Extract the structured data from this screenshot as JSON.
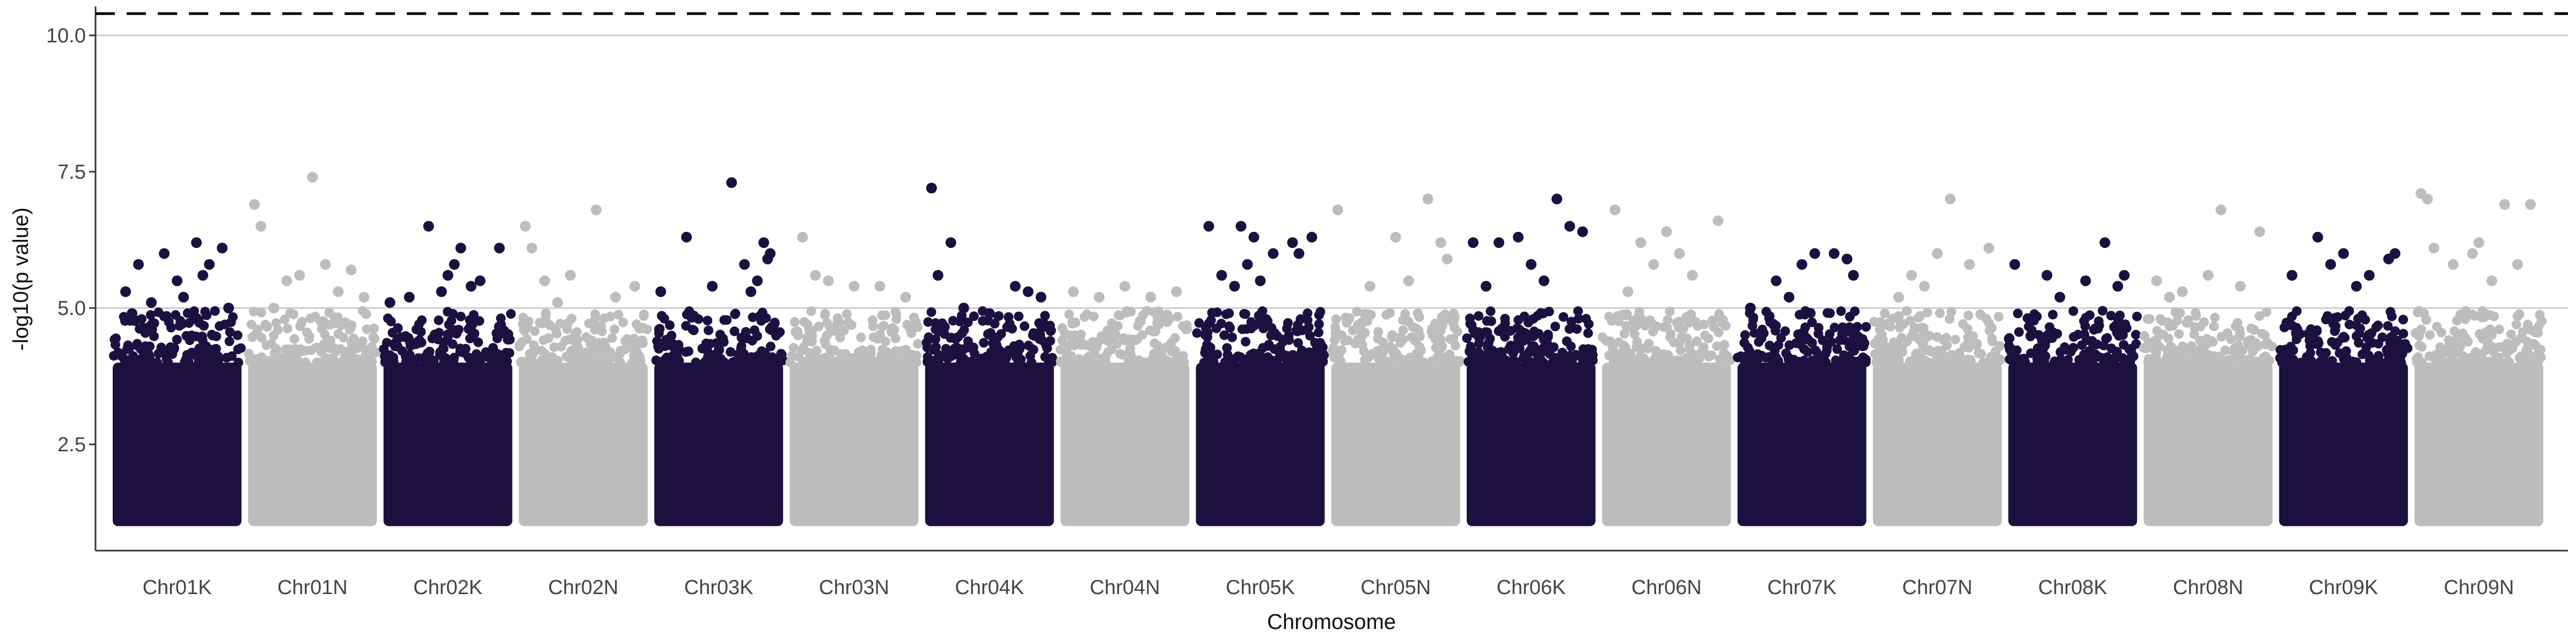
{
  "chart_data": {
    "type": "scatter",
    "subtype": "manhattan",
    "title": "",
    "xlabel": "Chromosome",
    "ylabel": "-log10(p value)",
    "ylim": [
      0.8,
      10.5
    ],
    "yticks": [
      2.5,
      5.0,
      7.5,
      10.0
    ],
    "ytick_labels": [
      "2.5",
      "5.0",
      "7.5",
      "10.0"
    ],
    "hlines": [
      {
        "y": 10.0,
        "style": "solid",
        "color": "#cccccc",
        "kind": "grid"
      },
      {
        "y": 5.0,
        "style": "solid",
        "color": "#cccccc",
        "kind": "grid"
      },
      {
        "y": 10.4,
        "style": "dashed",
        "color": "#000000",
        "kind": "threshold"
      }
    ],
    "colors": [
      "#1c1040",
      "#bdbdbd"
    ],
    "grid": "horizontal-only",
    "legend": "none",
    "baseline_range": [
      1.0,
      4.0
    ],
    "categories": [
      "Chr01K",
      "Chr01N",
      "Chr02K",
      "Chr02N",
      "Chr03K",
      "Chr03N",
      "Chr04K",
      "Chr04N",
      "Chr05K",
      "Chr05N",
      "Chr06K",
      "Chr06N",
      "Chr07K",
      "Chr07N",
      "Chr08K",
      "Chr08N",
      "Chr09K",
      "Chr09N"
    ],
    "top_points": [
      [
        [
          0.1,
          5.3
        ],
        [
          0.2,
          5.8
        ],
        [
          0.4,
          6.0
        ],
        [
          0.5,
          5.5
        ],
        [
          0.65,
          6.2
        ],
        [
          0.75,
          5.8
        ],
        [
          0.85,
          6.1
        ],
        [
          0.9,
          5.0
        ],
        [
          0.3,
          5.1
        ],
        [
          0.55,
          5.2
        ],
        [
          0.15,
          4.9
        ],
        [
          0.7,
          5.6
        ]
      ],
      [
        [
          0.05,
          6.9
        ],
        [
          0.1,
          6.5
        ],
        [
          0.3,
          5.5
        ],
        [
          0.5,
          7.4
        ],
        [
          0.6,
          5.8
        ],
        [
          0.8,
          5.7
        ],
        [
          0.9,
          5.2
        ],
        [
          0.2,
          5.0
        ],
        [
          0.7,
          5.3
        ],
        [
          0.4,
          5.6
        ]
      ],
      [
        [
          0.05,
          5.1
        ],
        [
          0.2,
          5.2
        ],
        [
          0.35,
          6.5
        ],
        [
          0.5,
          5.6
        ],
        [
          0.55,
          5.8
        ],
        [
          0.6,
          6.1
        ],
        [
          0.75,
          5.5
        ],
        [
          0.9,
          6.1
        ],
        [
          0.45,
          5.3
        ],
        [
          0.68,
          5.4
        ]
      ],
      [
        [
          0.05,
          6.5
        ],
        [
          0.1,
          6.1
        ],
        [
          0.2,
          5.5
        ],
        [
          0.4,
          5.6
        ],
        [
          0.6,
          6.8
        ],
        [
          0.75,
          5.2
        ],
        [
          0.9,
          5.4
        ],
        [
          0.3,
          5.1
        ]
      ],
      [
        [
          0.05,
          5.3
        ],
        [
          0.25,
          6.3
        ],
        [
          0.6,
          7.3
        ],
        [
          0.7,
          5.8
        ],
        [
          0.85,
          6.2
        ],
        [
          0.88,
          5.9
        ],
        [
          0.9,
          6.0
        ],
        [
          0.8,
          5.5
        ],
        [
          0.45,
          5.4
        ],
        [
          0.75,
          5.3
        ]
      ],
      [
        [
          0.1,
          6.3
        ],
        [
          0.2,
          5.6
        ],
        [
          0.3,
          5.5
        ],
        [
          0.5,
          5.4
        ],
        [
          0.7,
          5.4
        ],
        [
          0.9,
          5.2
        ]
      ],
      [
        [
          0.05,
          7.2
        ],
        [
          0.1,
          5.6
        ],
        [
          0.2,
          6.2
        ],
        [
          0.3,
          5.0
        ],
        [
          0.7,
          5.4
        ],
        [
          0.8,
          5.3
        ],
        [
          0.9,
          5.2
        ],
        [
          0.5,
          4.9
        ]
      ],
      [
        [
          0.1,
          5.3
        ],
        [
          0.3,
          5.2
        ],
        [
          0.5,
          5.4
        ],
        [
          0.7,
          5.2
        ],
        [
          0.9,
          5.3
        ]
      ],
      [
        [
          0.1,
          6.5
        ],
        [
          0.2,
          5.6
        ],
        [
          0.35,
          6.5
        ],
        [
          0.4,
          5.8
        ],
        [
          0.45,
          6.3
        ],
        [
          0.6,
          6.0
        ],
        [
          0.75,
          6.2
        ],
        [
          0.8,
          6.0
        ],
        [
          0.9,
          6.3
        ],
        [
          0.5,
          5.5
        ],
        [
          0.3,
          5.4
        ]
      ],
      [
        [
          0.05,
          6.8
        ],
        [
          0.5,
          6.3
        ],
        [
          0.75,
          7.0
        ],
        [
          0.85,
          6.2
        ],
        [
          0.9,
          5.9
        ],
        [
          0.3,
          5.4
        ],
        [
          0.6,
          5.5
        ]
      ],
      [
        [
          0.05,
          6.2
        ],
        [
          0.25,
          6.2
        ],
        [
          0.4,
          6.3
        ],
        [
          0.5,
          5.8
        ],
        [
          0.7,
          7.0
        ],
        [
          0.8,
          6.5
        ],
        [
          0.9,
          6.4
        ],
        [
          0.6,
          5.5
        ],
        [
          0.15,
          5.4
        ]
      ],
      [
        [
          0.1,
          6.8
        ],
        [
          0.3,
          6.2
        ],
        [
          0.4,
          5.8
        ],
        [
          0.5,
          6.4
        ],
        [
          0.6,
          6.0
        ],
        [
          0.9,
          6.6
        ],
        [
          0.7,
          5.6
        ],
        [
          0.2,
          5.3
        ]
      ],
      [
        [
          0.1,
          5.0
        ],
        [
          0.3,
          5.5
        ],
        [
          0.5,
          5.8
        ],
        [
          0.6,
          6.0
        ],
        [
          0.75,
          6.0
        ],
        [
          0.85,
          5.9
        ],
        [
          0.9,
          5.6
        ],
        [
          0.4,
          5.2
        ]
      ],
      [
        [
          0.2,
          5.2
        ],
        [
          0.3,
          5.6
        ],
        [
          0.5,
          6.0
        ],
        [
          0.6,
          7.0
        ],
        [
          0.75,
          5.8
        ],
        [
          0.9,
          6.1
        ],
        [
          0.4,
          5.4
        ]
      ],
      [
        [
          0.05,
          5.8
        ],
        [
          0.3,
          5.6
        ],
        [
          0.6,
          5.5
        ],
        [
          0.75,
          6.2
        ],
        [
          0.85,
          5.4
        ],
        [
          0.9,
          5.6
        ],
        [
          0.4,
          5.2
        ]
      ],
      [
        [
          0.1,
          5.5
        ],
        [
          0.3,
          5.3
        ],
        [
          0.5,
          5.6
        ],
        [
          0.6,
          6.8
        ],
        [
          0.75,
          5.4
        ],
        [
          0.9,
          6.4
        ],
        [
          0.2,
          5.2
        ]
      ],
      [
        [
          0.1,
          5.6
        ],
        [
          0.3,
          6.3
        ],
        [
          0.4,
          5.8
        ],
        [
          0.5,
          6.0
        ],
        [
          0.7,
          5.6
        ],
        [
          0.85,
          5.9
        ],
        [
          0.9,
          6.0
        ],
        [
          0.6,
          5.4
        ]
      ],
      [
        [
          0.05,
          7.1
        ],
        [
          0.1,
          7.0
        ],
        [
          0.15,
          6.1
        ],
        [
          0.3,
          5.8
        ],
        [
          0.45,
          6.0
        ],
        [
          0.5,
          6.2
        ],
        [
          0.7,
          6.9
        ],
        [
          0.8,
          5.8
        ],
        [
          0.9,
          6.9
        ],
        [
          0.6,
          5.5
        ]
      ]
    ]
  }
}
